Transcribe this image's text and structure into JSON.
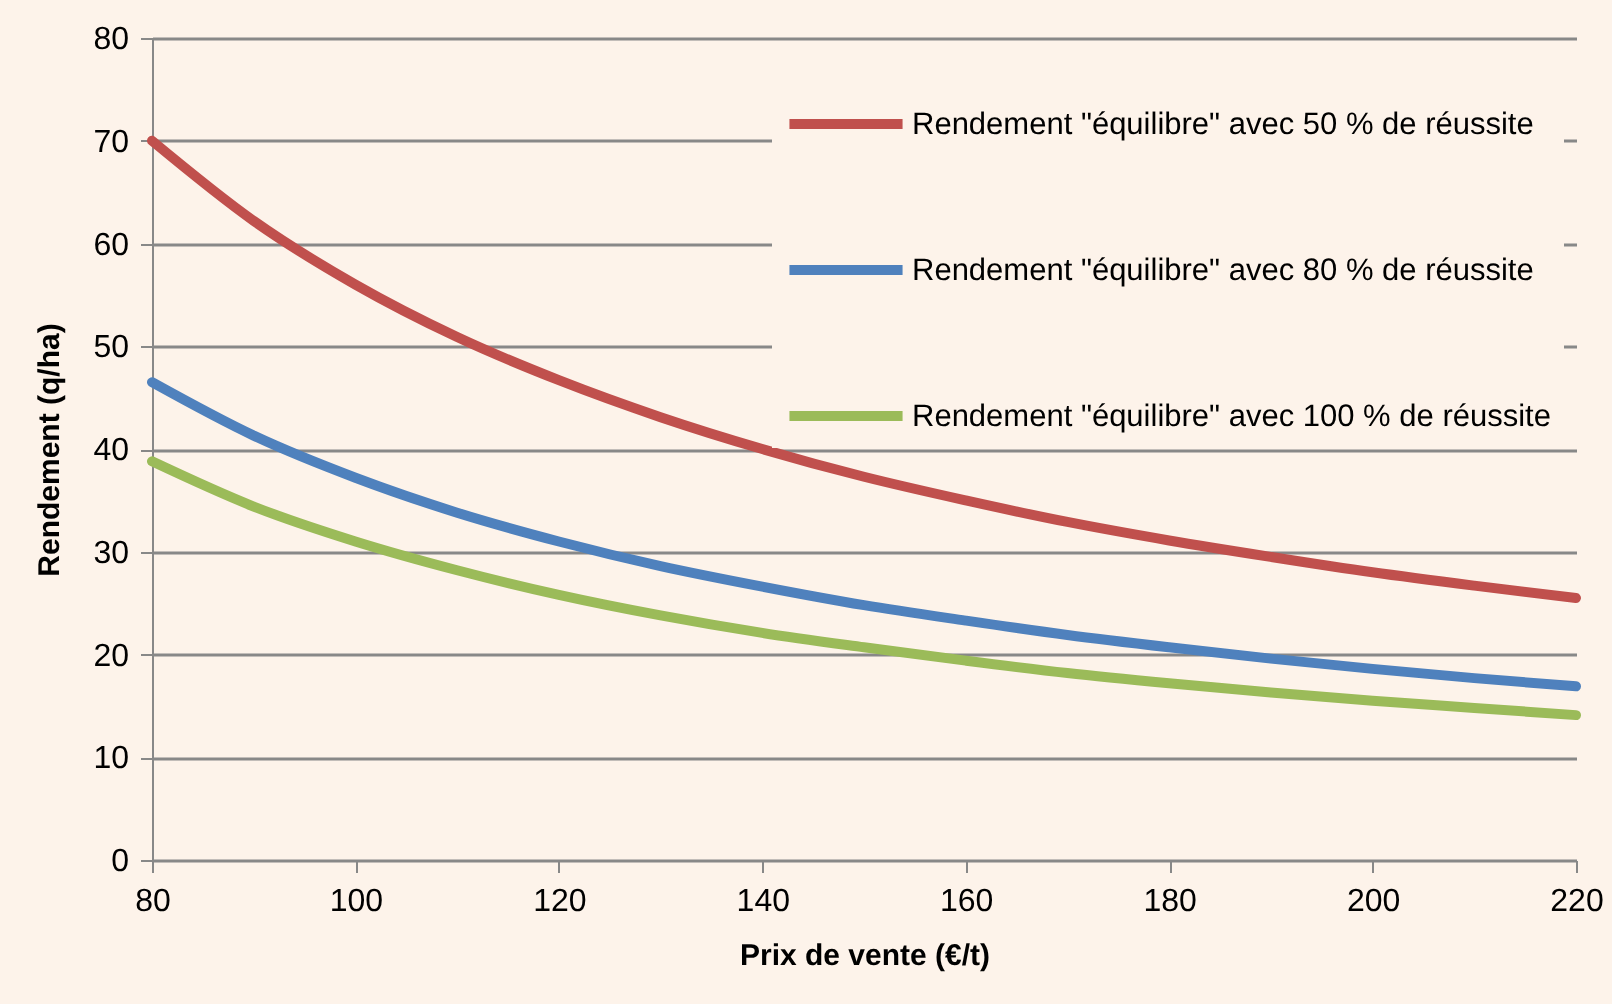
{
  "chart_data": {
    "type": "line",
    "xlabel": "Prix de vente (€/t)",
    "ylabel": "Rendement (q/ha)",
    "x": [
      80,
      90,
      100,
      110,
      120,
      130,
      140,
      150,
      160,
      170,
      180,
      190,
      200,
      210,
      220
    ],
    "series": [
      {
        "name": "Rendement \"équilibre\" avec 50 % de réussite",
        "color": "#c0504d",
        "values": [
          70,
          62.2,
          56,
          50.9,
          46.7,
          43.1,
          40,
          37.3,
          35,
          32.9,
          31.1,
          29.5,
          28,
          26.7,
          25.5
        ]
      },
      {
        "name": "Rendement \"équilibre\" avec 80 % de réussite",
        "color": "#4f81bd",
        "values": [
          46.5,
          41.3,
          37.2,
          33.8,
          31,
          28.6,
          26.6,
          24.8,
          23.3,
          21.9,
          20.7,
          19.6,
          18.6,
          17.7,
          16.9
        ]
      },
      {
        "name": "Rendement \"équilibre\" avec 100 % de réussite",
        "color": "#9bbb59",
        "values": [
          38.8,
          34.4,
          31,
          28.2,
          25.8,
          23.8,
          22.1,
          20.7,
          19.4,
          18.2,
          17.2,
          16.3,
          15.5,
          14.8,
          14.1
        ]
      }
    ],
    "xlim": [
      80,
      220
    ],
    "xticks": [
      80,
      100,
      120,
      140,
      160,
      180,
      200,
      220
    ],
    "ylim": [
      0,
      80
    ],
    "yticks": [
      0,
      10,
      20,
      30,
      40,
      50,
      60,
      70,
      80
    ],
    "grid": "y",
    "legend": "top right",
    "marker": "none",
    "line_style": "solid"
  }
}
